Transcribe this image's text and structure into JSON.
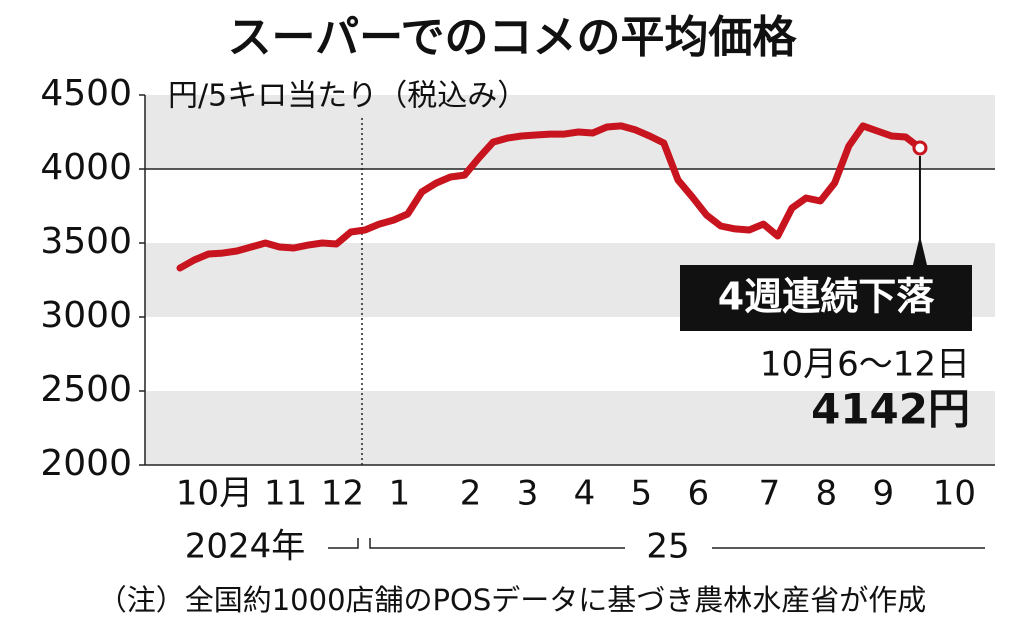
{
  "chart_data": {
    "type": "line",
    "title": "スーパーでのコメの平均価格",
    "unit_label": "円/5キロ当たり（税込み）",
    "note": "（注）全国約1000店舗のPOSデータに基づき農林水産省が作成",
    "categories": [
      null,
      null,
      "10月",
      null,
      null,
      null,
      null,
      "11",
      null,
      null,
      null,
      "12",
      null,
      null,
      null,
      "1",
      null,
      null,
      null,
      null,
      "2",
      null,
      null,
      null,
      "3",
      null,
      null,
      null,
      "4",
      null,
      null,
      null,
      "5",
      null,
      null,
      null,
      "6",
      null,
      null,
      null,
      null,
      "7",
      null,
      null,
      null,
      "8",
      null,
      null,
      null,
      "9",
      null,
      null,
      null,
      null,
      "10"
    ],
    "values": [
      3331,
      3385,
      3426,
      3432,
      3446,
      3473,
      3500,
      3473,
      3466,
      3486,
      3500,
      3493,
      3574,
      3588,
      3628,
      3655,
      3696,
      3845,
      3905,
      3946,
      3959,
      4074,
      4182,
      4209,
      4223,
      4230,
      4236,
      4236,
      4250,
      4243,
      4284,
      4291,
      4264,
      4223,
      4176,
      3926,
      3811,
      3689,
      3615,
      3595,
      3588,
      3628,
      3547,
      3736,
      3804,
      3784,
      3905,
      4155,
      4291,
      4257,
      4223,
      4216,
      4142,
      null,
      null
    ],
    "color": "#c8141e",
    "ylim": [
      2000,
      4500
    ],
    "yticks": [
      2000,
      2500,
      3000,
      3500,
      4000,
      4500
    ],
    "ref_line": 4000,
    "year_labels": [
      "2024年",
      "25"
    ],
    "annotation": {
      "badge": "4週連続下落",
      "period": "10月6～12日",
      "price": "4142円"
    }
  }
}
